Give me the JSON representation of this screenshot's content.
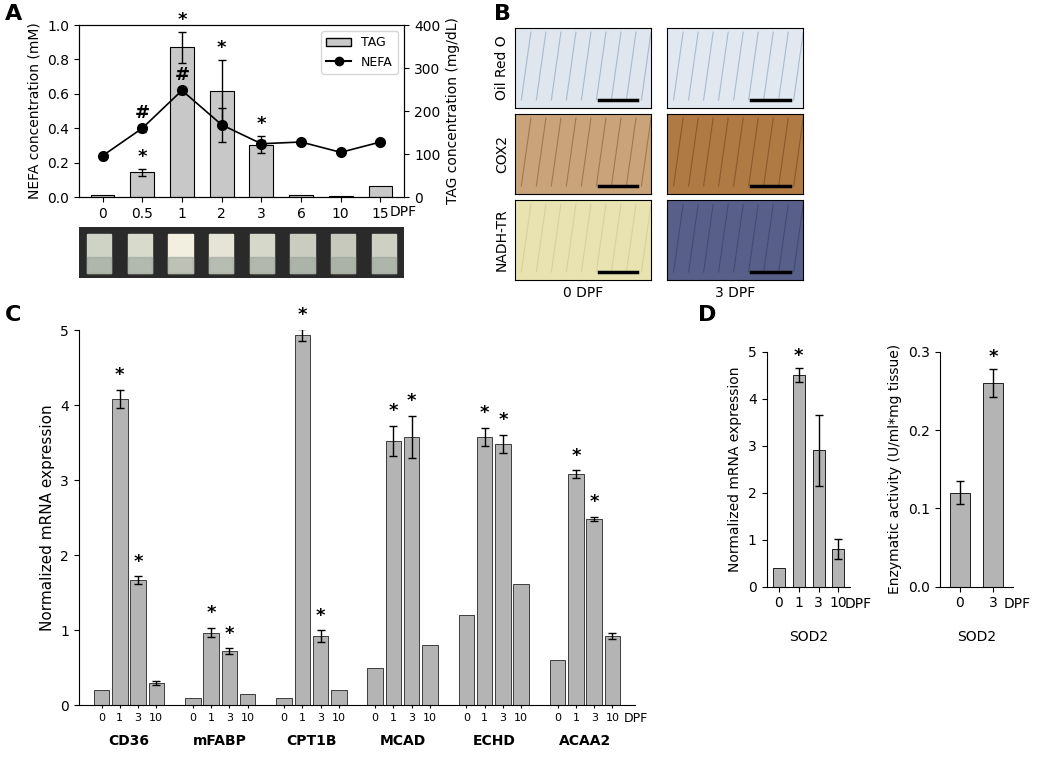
{
  "chart_data": [
    {
      "panel": "A",
      "type": "bar+line",
      "categories": [
        "0",
        "0.5",
        "1",
        "2",
        "3",
        "6",
        "10",
        "15"
      ],
      "x_unit": "DPF",
      "y_label": "NEFA concentration (mM)",
      "y2_label": "TAG concentration (mg/dL)",
      "ylim": [
        0,
        1.0
      ],
      "yticks": [
        {
          "value": 0,
          "label": "0.0"
        },
        {
          "value": 0.2,
          "label": "0.2"
        },
        {
          "value": 0.4,
          "label": "0.4"
        },
        {
          "value": 0.6,
          "label": "0.6"
        },
        {
          "value": 0.8,
          "label": "0.8"
        },
        {
          "value": 1.0,
          "label": "1.0"
        }
      ],
      "y2lim": [
        0,
        400
      ],
      "y2ticks": [
        0,
        100,
        200,
        300,
        400
      ],
      "legend": "upper right",
      "series": [
        {
          "name": "TAG",
          "type": "bar",
          "axis": "y2",
          "color": "#c8c8c8",
          "values": [
            5,
            58,
            348,
            247,
            122,
            4,
            3,
            26
          ],
          "errors": [
            null,
            8,
            36,
            72,
            20,
            null,
            null,
            null
          ],
          "annotations": [
            null,
            "*",
            "*",
            "*",
            "*",
            null,
            null,
            null
          ]
        },
        {
          "name": "NEFA",
          "type": "line",
          "color": "#000000",
          "marker": "o",
          "values": [
            0.24,
            0.4,
            0.62,
            0.42,
            0.31,
            0.32,
            0.26,
            0.32
          ],
          "errors": [
            0.01,
            0.02,
            0.02,
            0.1,
            0.02,
            0.01,
            0.01,
            0.01
          ],
          "annotations": [
            null,
            "#",
            "#",
            null,
            null,
            null,
            null,
            null
          ]
        }
      ]
    },
    {
      "panel": "C",
      "type": "grouped_bar",
      "categories": [
        "CD36",
        "mFABP",
        "CPT1B",
        "MCAD",
        "ECHD",
        "ACAA2"
      ],
      "x_unit": "DPF",
      "y_label": "Normalized mRNA expression",
      "color": "#b4b4b4",
      "ylim": [
        0,
        5
      ],
      "yticks": [
        0,
        1,
        2,
        3,
        4,
        5
      ],
      "series": [
        {
          "name": "0",
          "values": [
            0.2,
            0.1,
            0.1,
            0.5,
            1.2,
            0.6
          ],
          "errors": [
            null,
            null,
            null,
            null,
            null,
            null
          ],
          "annotations": [
            null,
            null,
            null,
            null,
            null,
            null
          ]
        },
        {
          "name": "1",
          "values": [
            4.08,
            0.97,
            4.93,
            3.52,
            3.58,
            3.08
          ],
          "errors": [
            0.12,
            0.06,
            0.08,
            0.2,
            0.12,
            0.05
          ],
          "annotations": [
            "*",
            "*",
            "*",
            "*",
            "*",
            "*"
          ]
        },
        {
          "name": "3",
          "values": [
            1.67,
            0.72,
            0.92,
            3.58,
            3.48,
            2.48
          ],
          "errors": [
            0.05,
            0.04,
            0.08,
            0.28,
            0.12,
            0.03
          ],
          "annotations": [
            "*",
            "*",
            "*",
            "*",
            "*",
            "*"
          ]
        },
        {
          "name": "10",
          "values": [
            0.3,
            0.15,
            0.2,
            0.8,
            1.62,
            0.92
          ],
          "errors": [
            0.03,
            null,
            null,
            null,
            null,
            0.04
          ],
          "annotations": [
            null,
            null,
            null,
            null,
            null,
            null
          ]
        }
      ]
    },
    {
      "panel": "D",
      "type": "bar",
      "categories": [
        "0",
        "1",
        "3",
        "10"
      ],
      "x_unit": "DPF",
      "x_label": "SOD2",
      "y_label": "Normalized mRNA expression",
      "color": "#b4b4b4",
      "values": [
        0.4,
        4.5,
        2.9,
        0.8
      ],
      "errors": [
        null,
        0.15,
        0.75,
        0.22
      ],
      "annotations": [
        null,
        "*",
        null,
        null
      ],
      "ylim": [
        0,
        5
      ],
      "yticks": [
        0,
        1,
        2,
        3,
        4,
        5
      ]
    },
    {
      "type": "bar",
      "categories": [
        "0",
        "3"
      ],
      "x_unit": "DPF",
      "x_label": "SOD2",
      "y_label": "Enzymatic activity (U/ml*mg tissue)",
      "color": "#b4b4b4",
      "values": [
        0.12,
        0.26
      ],
      "errors": [
        0.015,
        0.018
      ],
      "annotations": [
        null,
        "*"
      ],
      "ylim": [
        0,
        0.3
      ],
      "yticks": [
        {
          "value": 0,
          "label": "0.0"
        },
        {
          "value": 0.1,
          "label": "0.1"
        },
        {
          "value": 0.2,
          "label": "0.2"
        },
        {
          "value": 0.3,
          "label": "0.3"
        }
      ]
    }
  ],
  "image_panel": {
    "panel": "B",
    "rows": [
      "Oil Red O",
      "COX2",
      "NADH-TR"
    ],
    "columns": [
      "0 DPF",
      "3 DPF"
    ]
  }
}
